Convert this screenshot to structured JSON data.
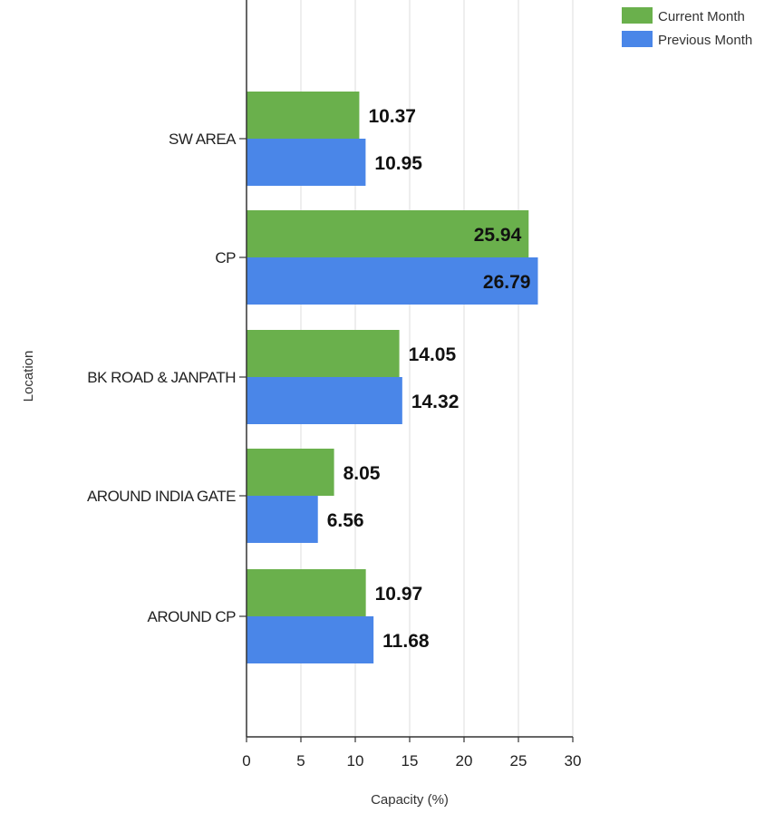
{
  "chart_data": {
    "type": "bar",
    "orientation": "horizontal",
    "categories": [
      "SW AREA",
      "CP",
      "BK ROAD & JANPATH",
      "AROUND INDIA GATE",
      "AROUND CP"
    ],
    "series": [
      {
        "name": "Current Month",
        "color": "#6ab04c",
        "values": [
          10.37,
          25.94,
          14.05,
          8.05,
          10.97
        ]
      },
      {
        "name": "Previous Month",
        "color": "#4a86e8",
        "values": [
          10.95,
          26.79,
          14.32,
          6.56,
          11.68
        ]
      }
    ],
    "xlabel": "Capacity (%)",
    "ylabel": "Location",
    "xlim": [
      0,
      30
    ],
    "xticks": [
      0,
      5,
      10,
      15,
      20,
      25,
      30
    ],
    "grid": true,
    "legend_position": "top-right",
    "data_labels": true
  }
}
